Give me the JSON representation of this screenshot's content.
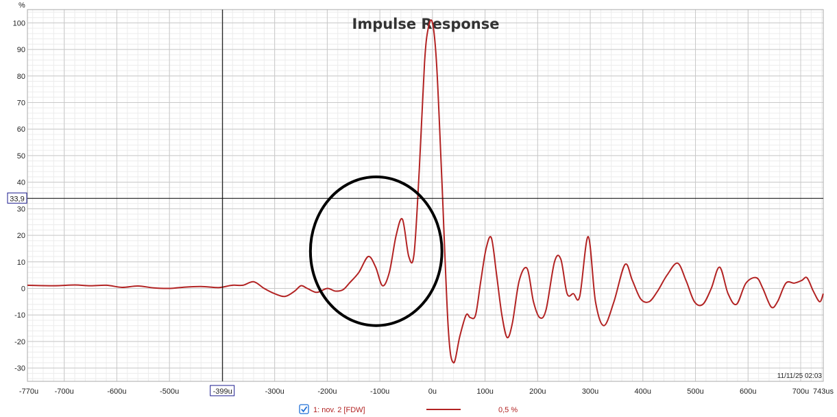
{
  "chart_data": {
    "type": "line",
    "title": "Impulse Response",
    "ylabel": "%",
    "xlabel": "",
    "x_unit": "us",
    "xlim": [
      -770,
      743
    ],
    "ylim": [
      -35,
      105
    ],
    "x_ticks": [
      {
        "value": -770,
        "label": "-770u"
      },
      {
        "value": -700,
        "label": "-700u"
      },
      {
        "value": -600,
        "label": "-600u"
      },
      {
        "value": -500,
        "label": "-500u"
      },
      {
        "value": -300,
        "label": "-300u"
      },
      {
        "value": -200,
        "label": "-200u"
      },
      {
        "value": -100,
        "label": "-100u"
      },
      {
        "value": 0,
        "label": "0u"
      },
      {
        "value": 100,
        "label": "100u"
      },
      {
        "value": 200,
        "label": "200u"
      },
      {
        "value": 300,
        "label": "300u"
      },
      {
        "value": 400,
        "label": "400u"
      },
      {
        "value": 500,
        "label": "500u"
      },
      {
        "value": 600,
        "label": "600u"
      },
      {
        "value": 700,
        "label": "700u"
      },
      {
        "value": 743,
        "label": "743us"
      }
    ],
    "y_ticks": [
      100,
      90,
      80,
      70,
      60,
      50,
      40,
      30,
      20,
      10,
      0,
      -10,
      -20,
      -30
    ],
    "grid": true,
    "cursor": {
      "x": -399,
      "y": 33.9,
      "x_label": "-399u",
      "y_label": "33,9"
    },
    "timestamp": "11/11/25 02:03",
    "annotation": {
      "type": "circle",
      "center_x": -107,
      "center_y": 14,
      "radius_x": 125,
      "radius_y": 28
    },
    "series": [
      {
        "name": "1: nov. 2 [FDW]",
        "color": "#b22222",
        "smoothing": "0,5 %",
        "x": [
          -770,
          -720,
          -680,
          -650,
          -620,
          -590,
          -560,
          -530,
          -500,
          -470,
          -440,
          -410,
          -399,
          -380,
          -360,
          -340,
          -320,
          -300,
          -280,
          -262,
          -250,
          -238,
          -220,
          -200,
          -185,
          -170,
          -158,
          -140,
          -122,
          -108,
          -95,
          -82,
          -69,
          -57,
          -45,
          -35,
          -25,
          -15,
          -8,
          0,
          8,
          18,
          30,
          40,
          52,
          64,
          72,
          82,
          92,
          102,
          112,
          122,
          132,
          142,
          152,
          165,
          180,
          192,
          204,
          216,
          232,
          244,
          256,
          268,
          280,
          296,
          310,
          326,
          345,
          366,
          380,
          396,
          412,
          428,
          446,
          466,
          482,
          498,
          514,
          530,
          546,
          562,
          578,
          596,
          616,
          628,
          644,
          656,
          672,
          688,
          702,
          712,
          724,
          736,
          743
        ],
        "y": [
          1.2,
          1.0,
          1.3,
          1.0,
          1.2,
          0.4,
          0.9,
          0.2,
          0.0,
          0.5,
          0.7,
          0.3,
          0.5,
          1.2,
          1.2,
          2.5,
          0.0,
          -2.0,
          -3.0,
          -1.0,
          1.0,
          0.0,
          -1.5,
          0.0,
          -1.0,
          -0.5,
          2.0,
          6.0,
          12.0,
          8.0,
          1.0,
          6.0,
          20.0,
          26.0,
          12.0,
          13.0,
          45.0,
          85.0,
          98.0,
          100.0,
          84.0,
          40.0,
          -15.0,
          -28.0,
          -18.0,
          -10.0,
          -11.0,
          -10.0,
          3.0,
          15.0,
          19.0,
          5.0,
          -10.0,
          -18.5,
          -13.0,
          3.0,
          7.5,
          -5.0,
          -11.0,
          -8.0,
          10.0,
          11.0,
          -2.0,
          -2.0,
          -3.0,
          19.5,
          -5.0,
          -14.0,
          -5.0,
          9.0,
          3.0,
          -4.0,
          -5.0,
          -1.0,
          5.0,
          9.5,
          3.0,
          -5.0,
          -6.0,
          0.0,
          8.0,
          -2.0,
          -6.0,
          2.0,
          4.0,
          0.0,
          -7.0,
          -5.0,
          2.0,
          2.0,
          3.0,
          4.0,
          -1.0,
          -5.0,
          -2.0
        ]
      }
    ]
  }
}
